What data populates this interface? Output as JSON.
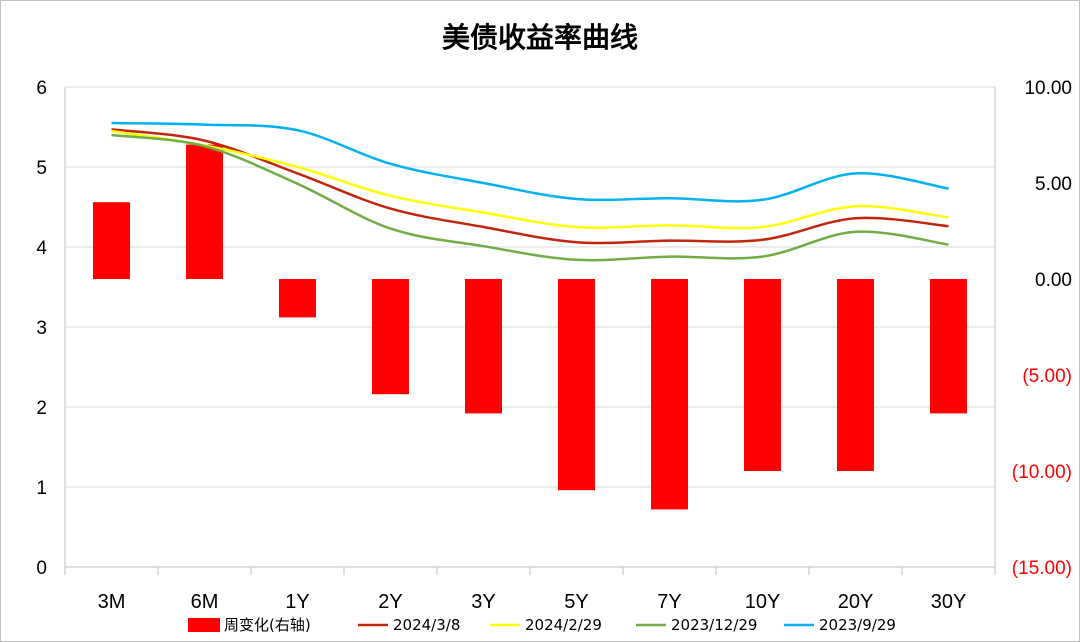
{
  "chart_data": {
    "type": "bar+line",
    "title": "美债收益率曲线",
    "categories": [
      "3M",
      "6M",
      "1Y",
      "2Y",
      "3Y",
      "5Y",
      "7Y",
      "10Y",
      "20Y",
      "30Y"
    ],
    "left_axis": {
      "ylim": [
        0,
        6
      ],
      "ticks": [
        "0",
        "1",
        "2",
        "3",
        "4",
        "5",
        "6"
      ]
    },
    "right_axis": {
      "ylim": [
        -15,
        10
      ],
      "ticks": [
        "10.00",
        "5.00",
        "0.00",
        "(5.00)",
        "(10.00)",
        "(15.00)"
      ]
    },
    "grid": true,
    "legend_position": "bottom",
    "bar_series": {
      "name": "周变化(右轴)",
      "axis": "right",
      "color": "#ff0000",
      "values": [
        4,
        7,
        -2,
        -6,
        -7,
        -11,
        -12,
        -10,
        -10,
        -7
      ]
    },
    "series": [
      {
        "name": "2024/3/8",
        "axis": "left",
        "color": "#c0260d",
        "values": [
          5.47,
          5.33,
          4.92,
          4.48,
          4.25,
          4.06,
          4.08,
          4.09,
          4.36,
          4.26
        ]
      },
      {
        "name": "2024/2/29",
        "axis": "left",
        "color": "#ffff00",
        "values": [
          5.45,
          5.27,
          5.0,
          4.64,
          4.43,
          4.25,
          4.27,
          4.25,
          4.51,
          4.37
        ]
      },
      {
        "name": "2023/12/29",
        "axis": "left",
        "color": "#70ad47",
        "values": [
          5.4,
          5.26,
          4.79,
          4.23,
          4.01,
          3.84,
          3.88,
          3.88,
          4.19,
          4.03
        ]
      },
      {
        "name": "2023/9/29",
        "axis": "left",
        "color": "#00b0f0",
        "values": [
          5.55,
          5.53,
          5.46,
          5.04,
          4.8,
          4.6,
          4.61,
          4.59,
          4.92,
          4.73
        ]
      }
    ]
  }
}
